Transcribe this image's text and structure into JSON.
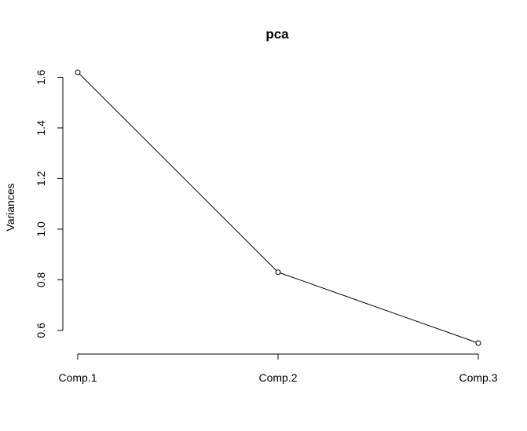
{
  "chart_data": {
    "type": "line",
    "title": "pca",
    "xlabel": "",
    "ylabel": "Variances",
    "categories": [
      "Comp.1",
      "Comp.2",
      "Comp.3"
    ],
    "values": [
      1.62,
      0.83,
      0.55
    ],
    "ylim": [
      0.55,
      1.62
    ],
    "yticks": [
      "0.6",
      "0.8",
      "1.0",
      "1.2",
      "1.4",
      "1.6"
    ],
    "grid": false,
    "legend": "none",
    "line_color": "#000000",
    "marker": "open-circle"
  }
}
